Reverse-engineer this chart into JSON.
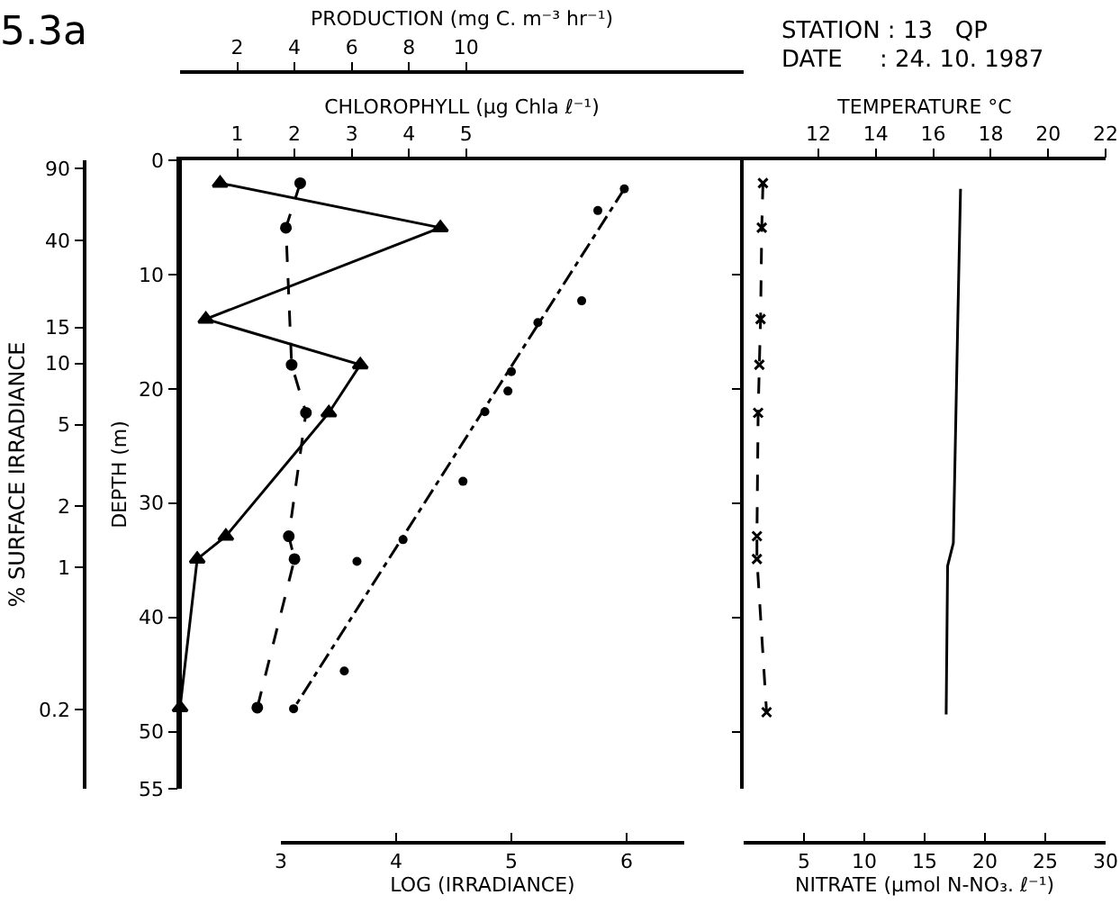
{
  "chart_data": [
    {
      "type": "line",
      "title": "5.3a",
      "xlabel": "CHLOROPHYLL (µg Chla ℓ⁻¹)",
      "x2label": "PRODUCTION (mg C. m⁻³ hr⁻¹)",
      "ylabel": "DEPTH (m)",
      "y2label": "% SURFACE IRRADIANCE",
      "xlim": [
        0,
        9.85
      ],
      "xticks": [
        1,
        2,
        3,
        4,
        5
      ],
      "x2lim": [
        0,
        19.7
      ],
      "x2ticks": [
        2,
        4,
        6,
        8,
        10
      ],
      "ylim": [
        55,
        0
      ],
      "yticks": [
        0,
        10,
        20,
        30,
        40,
        50,
        55
      ],
      "log": "y2",
      "y2lim": [
        0.082,
        99
      ],
      "y2ticks": [
        90,
        40,
        15,
        10,
        5,
        2,
        1,
        0.2
      ],
      "grid": false,
      "series": [
        {
          "axis": "x2",
          "color": "#000000",
          "marker": "triangle",
          "line_style": "solid",
          "x": [
            1.4,
            9.1,
            0.9,
            6.3,
            5.2,
            1.6,
            0.6,
            0
          ],
          "values": [
            2,
            5.9,
            13.9,
            17.9,
            22.1,
            32.9,
            34.9,
            47.9
          ]
        },
        {
          "color": "#000000",
          "marker": "circle",
          "line_style": "dashed",
          "x": [
            2.1,
            1.85,
            1.95,
            2.2,
            1.9,
            2.0,
            1.35
          ],
          "values": [
            2,
            5.9,
            17.9,
            22.1,
            32.9,
            34.9,
            47.9
          ]
        }
      ]
    },
    {
      "type": "line",
      "xlabel": "LOG (IRRADIANCE)",
      "xlim": [
        3,
        6.5
      ],
      "xticks": [
        3,
        4,
        5,
        6
      ],
      "ylim": [
        55,
        0
      ],
      "tick_labels": "x",
      "grid": false,
      "series": [
        {
          "type": "scatter",
          "color": "#000000",
          "marker": "circle",
          "x": [
            5.98,
            5.75,
            5.61,
            5.23,
            5.0,
            4.97,
            4.77,
            4.58,
            4.06,
            3.66,
            3.55,
            3.11
          ],
          "values": [
            2.5,
            4.4,
            12.3,
            14.2,
            18.5,
            20.2,
            22.0,
            28.1,
            33.2,
            35.1,
            44.7,
            48.0
          ]
        },
        {
          "color": "#000000",
          "marker": "none",
          "line_style": "dashdot",
          "x": [
            5.98,
            3.11
          ],
          "values": [
            2.5,
            48.0
          ]
        }
      ]
    },
    {
      "type": "line",
      "xlabel": "TEMPERATURE °C",
      "x2label": "NITRATE (µmol N-NO₃. ℓ⁻¹)",
      "xlim": [
        9.4,
        22
      ],
      "xticks": [
        12,
        14,
        16,
        18,
        20,
        22
      ],
      "x2lim": [
        0,
        30
      ],
      "x2ticks": [
        5,
        10,
        15,
        20,
        25,
        30
      ],
      "ylim": [
        55,
        0
      ],
      "yticks": [
        {
          "value": 10,
          "label": null
        },
        {
          "value": 20,
          "label": null
        },
        {
          "value": 30,
          "label": null
        },
        {
          "value": 40,
          "label": null
        },
        {
          "value": 50,
          "label": null
        }
      ],
      "tick_labels": "x",
      "grid": false,
      "annotations": [
        "STATION : 13   QP",
        "DATE     : 24. 10. 1987"
      ],
      "series": [
        {
          "color": "#000000",
          "marker": "none",
          "line_style": "solid",
          "x": [
            16.95,
            16.85,
            16.7,
            16.5,
            16.45
          ],
          "values": [
            2.5,
            14.5,
            33.5,
            35.5,
            48.5
          ]
        },
        {
          "axis": "x2",
          "color": "#000000",
          "marker": "cross",
          "line_style": "dashed",
          "x": [
            1.6,
            1.5,
            1.4,
            1.3,
            1.2,
            1.1,
            1.1,
            1.9
          ],
          "values": [
            2,
            5.9,
            13.9,
            17.9,
            22.1,
            32.9,
            34.9,
            48.3
          ]
        }
      ]
    }
  ]
}
